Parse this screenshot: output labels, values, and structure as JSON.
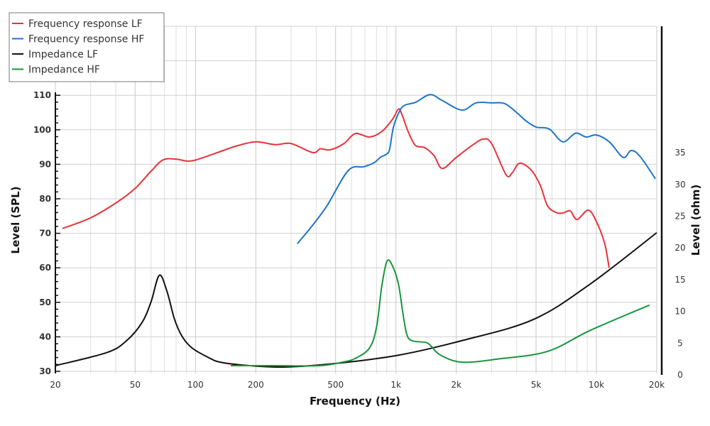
{
  "chart_data": {
    "type": "line",
    "title": "",
    "xlabel": "Frequency (Hz)",
    "ylabel": "Level (SPL)",
    "y2label": "Level (ohm)",
    "xscale": "log",
    "xlim": [
      20,
      20000
    ],
    "ylim": [
      30,
      130
    ],
    "y2lim": [
      0,
      40
    ],
    "grid": true,
    "legend_position": "top-left",
    "xticks": [
      {
        "v": 20,
        "l": "20"
      },
      {
        "v": 50,
        "l": "50"
      },
      {
        "v": 100,
        "l": "100"
      },
      {
        "v": 200,
        "l": "200"
      },
      {
        "v": 500,
        "l": "500"
      },
      {
        "v": 1000,
        "l": "1k"
      },
      {
        "v": 2000,
        "l": "2k"
      },
      {
        "v": 5000,
        "l": "5k"
      },
      {
        "v": 10000,
        "l": "10k"
      },
      {
        "v": 20000,
        "l": "20k"
      }
    ],
    "yticks": [
      30,
      40,
      50,
      60,
      70,
      80,
      90,
      100,
      110
    ],
    "y2ticks": [
      0,
      5,
      10,
      15,
      20,
      25,
      30,
      35
    ],
    "series": [
      {
        "name": "Frequency response LF",
        "axis": "left",
        "color": "#e8333a",
        "x": [
          21.7,
          30,
          40.6,
          50,
          60,
          69,
          80,
          96,
          130,
          160,
          200,
          250,
          300,
          384,
          420,
          470,
          550,
          627,
          738,
          850,
          960,
          1029,
          1070,
          1150,
          1250,
          1394,
          1550,
          1702,
          2000,
          2400,
          2727,
          3000,
          3541,
          3800,
          4130,
          4700,
          5240,
          5700,
          6300,
          6810,
          7400,
          8000,
          9100,
          10000,
          11000,
          11570
        ],
        "y": [
          71.4,
          74.5,
          79,
          83,
          88,
          91.3,
          91.5,
          91,
          93.5,
          95.3,
          96.5,
          95.7,
          96,
          93.4,
          94.5,
          94.2,
          96,
          98.9,
          97.9,
          99.5,
          103,
          106,
          104.5,
          99.5,
          95.5,
          94.8,
          92.5,
          88.8,
          92,
          95.5,
          97.3,
          96,
          87,
          87.5,
          90.3,
          88.5,
          84,
          78,
          76,
          75.9,
          76.5,
          74,
          76.7,
          73.4,
          67,
          60
        ]
      },
      {
        "name": "Frequency response HF",
        "axis": "left",
        "color": "#1c75c8",
        "x": [
          322,
          380,
          453,
          578,
          692,
          780,
          835,
          900,
          930,
          970,
          1029,
          1097,
          1256,
          1479,
          1700,
          2134,
          2513,
          3000,
          3480,
          4000,
          4450,
          5000,
          5450,
          5900,
          6810,
          7880,
          8900,
          10000,
          11600,
          13600,
          14900,
          16500,
          19700
        ],
        "y": [
          67,
          72,
          78,
          88.2,
          89.3,
          90.5,
          92,
          93,
          94.4,
          100.6,
          104.7,
          107,
          108,
          110.2,
          108.5,
          105.7,
          107.8,
          107.8,
          107.6,
          105,
          102.6,
          100.8,
          100.6,
          100,
          96.5,
          99,
          97.9,
          98.5,
          96.5,
          92,
          94,
          92.3,
          85.8
        ]
      },
      {
        "name": "Impedance LF",
        "axis": "right",
        "color": "#111111",
        "x": [
          20,
          36,
          45,
          54,
          60,
          66,
          72,
          78.7,
          86,
          96,
          115,
          133,
          180,
          277,
          500,
          1029,
          2134,
          4830,
          9300,
          20000
        ],
        "y": [
          1.45,
          3.5,
          5.3,
          8.2,
          11.5,
          15.7,
          13.2,
          8.7,
          6,
          4.25,
          2.8,
          2,
          1.5,
          1.23,
          1.8,
          3.1,
          5.4,
          8.7,
          14.3,
          22.4
        ]
      },
      {
        "name": "Impedance HF",
        "axis": "right",
        "color": "#16963c",
        "x": [
          150,
          250,
          417,
          540,
          627,
          738,
          801,
          850,
          902,
          960,
          1029,
          1080,
          1130,
          1200,
          1414,
          1500,
          1670,
          2134,
          3230,
          5700,
          9300,
          18400
        ],
        "y": [
          1.45,
          1.45,
          1.45,
          2,
          2.6,
          4.25,
          7.6,
          14,
          17.9,
          17.2,
          14.3,
          10,
          6.5,
          5.4,
          5.1,
          4.5,
          3.1,
          2,
          2.5,
          3.7,
          7,
          11
        ]
      }
    ]
  }
}
